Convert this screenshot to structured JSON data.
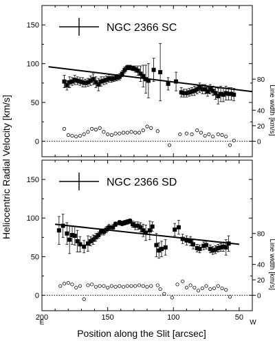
{
  "figure": {
    "ylabel_left": "Heliocentric Radial Velocity [km/s]",
    "ylabel_right": "Line width [km/s]",
    "xlabel": "Position along the Slit [arcsec]",
    "east_label": "E",
    "west_label": "W"
  },
  "chart_data": [
    {
      "type": "scatter",
      "title": "NGC 2366 SC",
      "xlim": [
        200,
        40
      ],
      "ylim": [
        -20,
        175
      ],
      "yticks": [
        0,
        50,
        100,
        150
      ],
      "right_ylim": [
        -20,
        175
      ],
      "right_yticks": [
        0,
        20,
        40,
        80
      ],
      "fit_line": {
        "x": [
          195,
          40
        ],
        "y": [
          96,
          64
        ]
      },
      "series": [
        {
          "marker": "filled-square",
          "x": [
            183,
            181,
            179,
            177,
            175,
            173,
            171,
            169,
            167,
            165,
            163,
            161,
            159,
            157,
            155,
            153,
            151,
            149,
            147,
            145,
            143,
            141,
            139,
            137,
            135,
            133,
            131,
            129,
            127,
            125,
            123,
            121,
            119,
            115,
            110,
            104,
            98,
            94,
            92,
            90,
            88,
            86,
            84,
            82,
            80,
            78,
            76,
            74,
            72,
            70,
            68,
            66,
            64,
            62,
            60,
            58,
            56,
            54
          ],
          "y": [
            77,
            72,
            76,
            77,
            79,
            78,
            77,
            76,
            75,
            76,
            78,
            80,
            76,
            73,
            77,
            78,
            79,
            81,
            80,
            81,
            82,
            83,
            87,
            92,
            95,
            95,
            94,
            93,
            91,
            87,
            84,
            80,
            78,
            92,
            89,
            74,
            77,
            63,
            62,
            62,
            63,
            64,
            65,
            67,
            69,
            67,
            67,
            64,
            67,
            65,
            62,
            58,
            61,
            60,
            62,
            61,
            61,
            60
          ],
          "err": [
            8,
            6,
            7,
            5,
            6,
            5,
            5,
            6,
            5,
            5,
            6,
            7,
            7,
            8,
            6,
            5,
            5,
            5,
            4,
            4,
            4,
            4,
            4,
            4,
            3,
            3,
            3,
            4,
            6,
            10,
            14,
            18,
            22,
            15,
            37,
            8,
            12,
            6,
            5,
            5,
            5,
            5,
            6,
            6,
            6,
            6,
            6,
            6,
            6,
            6,
            8,
            10,
            10,
            9,
            9,
            8,
            8,
            8
          ]
        },
        {
          "marker": "open-circle",
          "x": [
            183,
            180,
            177,
            174,
            171,
            168,
            165,
            162,
            159,
            156,
            153,
            150,
            147,
            144,
            141,
            138,
            135,
            132,
            129,
            126,
            123,
            120,
            117,
            112,
            103,
            95,
            90,
            86,
            82,
            79,
            76,
            73,
            70,
            66,
            63,
            60,
            57,
            54
          ],
          "y": [
            16,
            8,
            7,
            6,
            7,
            9,
            12,
            16,
            15,
            17,
            12,
            9,
            8,
            10,
            10,
            11,
            11,
            12,
            11,
            11,
            14,
            19,
            17,
            13,
            -5,
            9,
            10,
            9,
            14,
            11,
            7,
            9,
            6,
            9,
            8,
            6,
            -5,
            1
          ]
        }
      ]
    },
    {
      "type": "scatter",
      "title": "NGC 2366 SD",
      "xlim": [
        200,
        40
      ],
      "ylim": [
        -20,
        175
      ],
      "yticks": [
        0,
        50,
        100,
        150
      ],
      "right_ylim": [
        -20,
        175
      ],
      "right_yticks": [
        0,
        20,
        40,
        80
      ],
      "x_ticks": [
        200,
        150,
        100,
        50
      ],
      "fit_line": {
        "x": [
          190,
          50
        ],
        "y": [
          92,
          66
        ]
      },
      "series": [
        {
          "marker": "filled-square",
          "x": [
            187,
            184,
            181,
            179,
            177,
            175,
            173,
            171,
            168,
            165,
            163,
            161,
            159,
            157,
            155,
            153,
            151,
            149,
            146,
            144,
            141,
            139,
            137,
            135,
            133,
            131,
            129,
            127,
            125,
            123,
            121,
            118,
            116,
            113,
            111,
            109,
            106,
            99,
            96,
            93,
            90,
            87,
            85,
            82,
            80,
            77,
            75,
            72,
            70,
            68,
            66,
            64,
            62,
            60,
            58
          ],
          "y": [
            84,
            90,
            80,
            72,
            78,
            77,
            70,
            66,
            63,
            67,
            70,
            72,
            75,
            78,
            82,
            82,
            85,
            88,
            88,
            92,
            94,
            93,
            94,
            95,
            96,
            92,
            90,
            90,
            88,
            84,
            81,
            84,
            89,
            65,
            58,
            60,
            62,
            85,
            88,
            73,
            71,
            70,
            66,
            61,
            60,
            64,
            65,
            60,
            58,
            59,
            61,
            62,
            63,
            62,
            67
          ],
          "err": [
            18,
            15,
            14,
            18,
            12,
            12,
            14,
            10,
            8,
            10,
            6,
            6,
            5,
            4,
            4,
            4,
            4,
            4,
            4,
            3,
            3,
            3,
            3,
            3,
            3,
            4,
            5,
            5,
            6,
            8,
            10,
            12,
            6,
            15,
            10,
            10,
            10,
            8,
            9,
            6,
            6,
            6,
            6,
            5,
            5,
            5,
            5,
            5,
            5,
            5,
            5,
            5,
            6,
            10,
            10
          ]
        },
        {
          "marker": "open-circle",
          "x": [
            186,
            183,
            180,
            177,
            174,
            171,
            168,
            165,
            162,
            159,
            156,
            153,
            150,
            147,
            144,
            141,
            138,
            135,
            132,
            129,
            126,
            123,
            120,
            117,
            112,
            110,
            107,
            101,
            97,
            93,
            90,
            87,
            84,
            81,
            78,
            75,
            72,
            69,
            66,
            63,
            60,
            57
          ],
          "y": [
            12,
            15,
            16,
            14,
            10,
            12,
            -5,
            13,
            14,
            11,
            12,
            12,
            10,
            12,
            11,
            12,
            11,
            12,
            12,
            12,
            13,
            12,
            11,
            12,
            13,
            8,
            2,
            -3,
            14,
            18,
            10,
            13,
            10,
            6,
            9,
            12,
            8,
            9,
            12,
            9,
            7,
            -2
          ]
        }
      ]
    }
  ]
}
